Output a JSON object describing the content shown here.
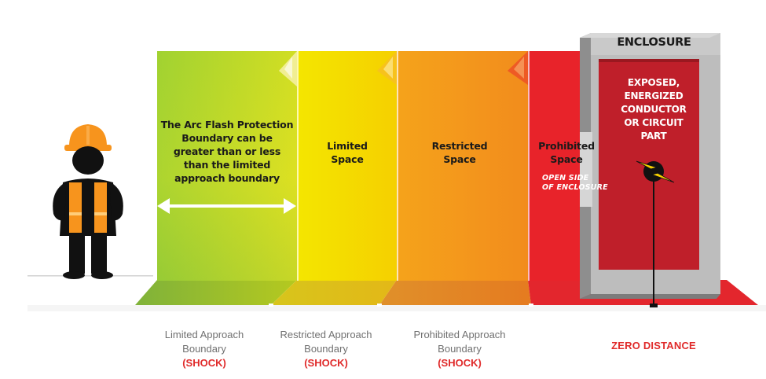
{
  "zones": {
    "arc_flash": {
      "lines": [
        "The Arc Flash Protection",
        "Boundary can be",
        "greater than or less",
        "than the limited",
        "approach boundary"
      ]
    },
    "limited": {
      "lines": [
        "Limited",
        "Space"
      ]
    },
    "restricted": {
      "lines": [
        "Restricted",
        "Space"
      ]
    },
    "prohibited": {
      "lines": [
        "Prohibited",
        "Space"
      ],
      "note_lines": [
        "OPEN SIDE",
        "OF ENCLOSURE"
      ]
    }
  },
  "enclosure": {
    "title": "ENCLOSURE",
    "body_lines": [
      "EXPOSED,",
      "ENERGIZED",
      "CONDUCTOR",
      "OR CIRCUIT",
      "PART"
    ]
  },
  "boundaries": [
    {
      "lines": [
        "Limited Approach",
        "Boundary"
      ],
      "tag": "(SHOCK)"
    },
    {
      "lines": [
        "Restricted Approach",
        "Boundary"
      ],
      "tag": "(SHOCK)"
    },
    {
      "lines": [
        "Prohibited Approach",
        "Boundary"
      ],
      "tag": "(SHOCK)"
    }
  ],
  "zero_distance": "ZERO DISTANCE",
  "colors": {
    "green_zone": "#9acd2e",
    "yellow_zone": "#f2dc00",
    "orange_zone": "#f39a1c",
    "red_zone": "#e8232a",
    "enclosure_gray": "#b8b8b8",
    "enclosure_red": "#c0202a",
    "vest_orange": "#f7941d",
    "hat_orange": "#f7941d"
  },
  "icons": {
    "worker": "worker-icon",
    "hazard": "lightning-hazard-icon",
    "arrow": "double-arrow-icon"
  }
}
